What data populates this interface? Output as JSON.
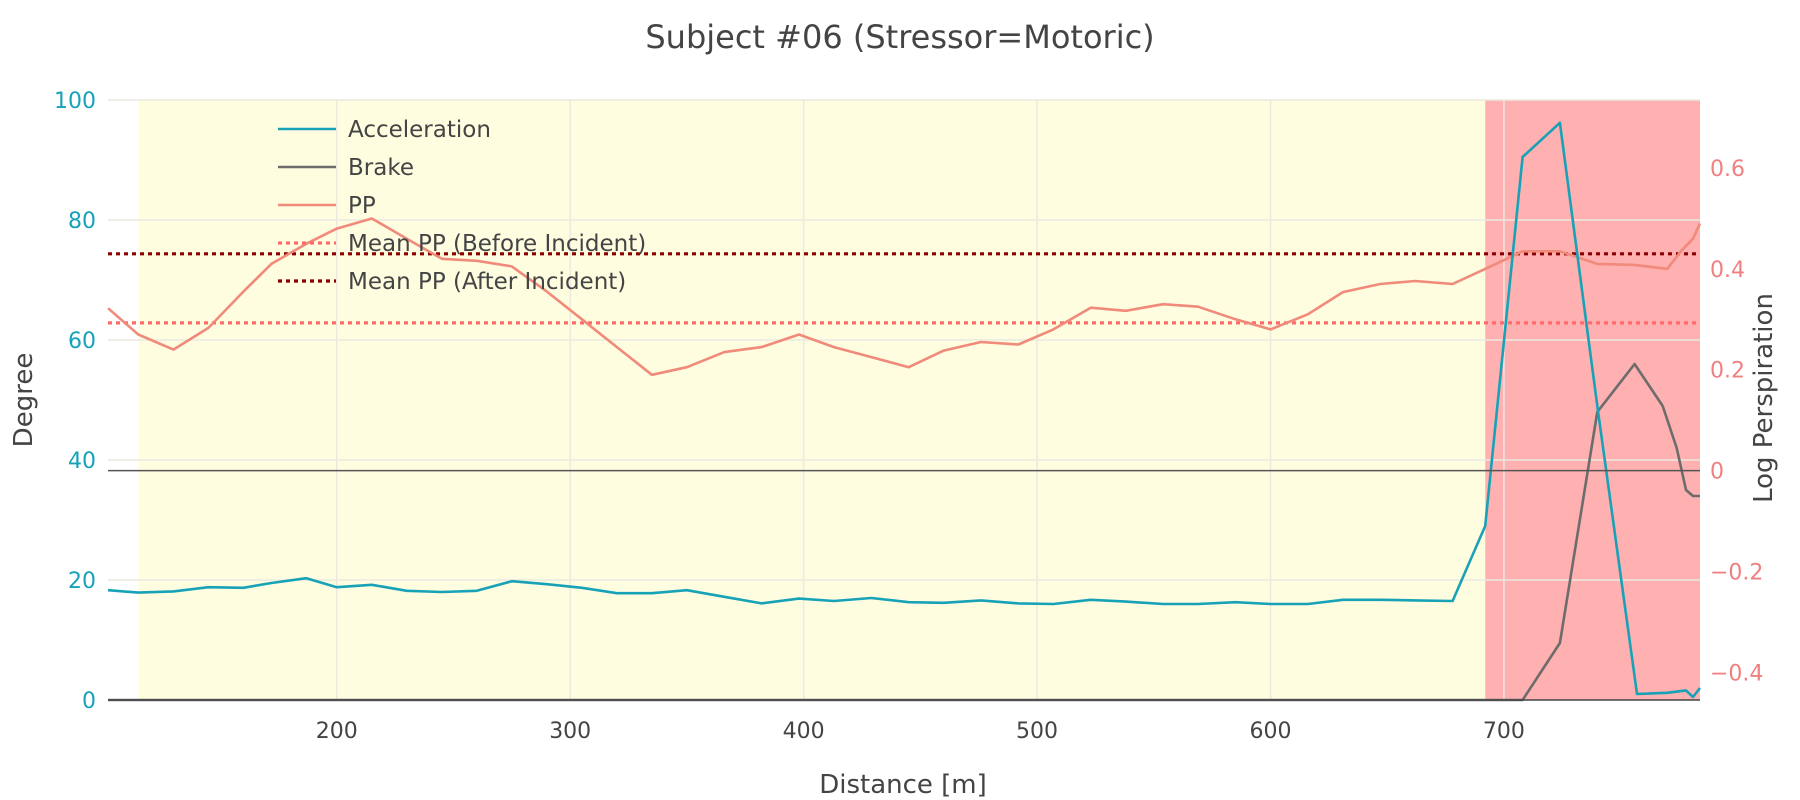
{
  "colors": {
    "acceleration": "#17a2b8",
    "brake": "#6c6c6c",
    "pp": "#f08a7a",
    "mean_before": "#ff6b6b",
    "mean_after": "#8b0000",
    "left_axis": "#17a2b8",
    "right_axis": "#f08080",
    "before_region": "#fffde0",
    "after_region": "#ffb0b0",
    "grid": "#ece9df"
  },
  "chart_data": {
    "type": "line",
    "title": "Subject #06 (Stressor=Motoric)",
    "xlabel": "Distance [m]",
    "ylabel_left": "Degree",
    "ylabel_right": "Log Perspiration",
    "xlim": [
      102,
      784
    ],
    "ylim_left": [
      0,
      100
    ],
    "ylim_right": [
      -0.455,
      0.735
    ],
    "x_ticks": [
      200,
      300,
      400,
      500,
      600,
      700
    ],
    "y_left_ticks": [
      0,
      20,
      40,
      60,
      80,
      100
    ],
    "y_right_ticks": [
      -0.4,
      -0.2,
      0,
      0.2,
      0.4,
      0.6
    ],
    "y_right_tick_labels": [
      "−0.4",
      "−0.2",
      "0",
      "0.2",
      "0.4",
      "0.6"
    ],
    "regions": [
      {
        "name": "Before Incident",
        "x0": 115,
        "x1": 692
      },
      {
        "name": "After Incident",
        "x0": 692,
        "x1": 784
      }
    ],
    "legend_position": "top-left",
    "series": [
      {
        "name": "Acceleration",
        "axis": "left",
        "x": [
          102,
          115,
          130,
          145,
          160,
          172,
          187,
          200,
          215,
          230,
          245,
          260,
          275,
          290,
          305,
          320,
          335,
          350,
          366,
          382,
          398,
          413,
          429,
          445,
          460,
          476,
          492,
          507,
          523,
          538,
          554,
          569,
          585,
          600,
          616,
          631,
          647,
          662,
          678,
          692,
          708,
          724,
          740,
          757,
          770,
          778,
          781,
          784
        ],
        "values": [
          18.3,
          17.9,
          18.1,
          18.8,
          18.7,
          19.5,
          20.3,
          18.8,
          19.2,
          18.2,
          18.0,
          18.2,
          19.8,
          19.3,
          18.7,
          17.8,
          17.8,
          18.3,
          17.2,
          16.1,
          16.9,
          16.5,
          17.0,
          16.3,
          16.2,
          16.6,
          16.1,
          16.0,
          16.7,
          16.4,
          16.0,
          16.0,
          16.3,
          16.0,
          16.0,
          16.7,
          16.7,
          16.6,
          16.5,
          29.0,
          90.5,
          96.2,
          49.0,
          1.0,
          1.2,
          1.6,
          0.5,
          2.0
        ]
      },
      {
        "name": "Brake",
        "axis": "left",
        "x": [
          102,
          692,
          708,
          724,
          740,
          756,
          768,
          774,
          778,
          781,
          784
        ],
        "values": [
          0,
          0,
          0,
          9.5,
          48.0,
          56.0,
          49.0,
          42.0,
          35.0,
          34.0,
          34.0
        ]
      },
      {
        "name": "PP",
        "axis": "right",
        "x": [
          102,
          115,
          130,
          145,
          160,
          172,
          187,
          200,
          215,
          230,
          245,
          260,
          275,
          290,
          305,
          320,
          335,
          350,
          366,
          382,
          398,
          413,
          429,
          445,
          460,
          476,
          492,
          507,
          523,
          538,
          554,
          569,
          585,
          600,
          616,
          631,
          647,
          662,
          678,
          692,
          708,
          724,
          740,
          756,
          770,
          776,
          781,
          784
        ],
        "values": [
          0.322,
          0.27,
          0.24,
          0.283,
          0.355,
          0.41,
          0.45,
          0.48,
          0.5,
          0.46,
          0.42,
          0.416,
          0.405,
          0.355,
          0.3,
          0.245,
          0.19,
          0.205,
          0.235,
          0.245,
          0.27,
          0.245,
          0.225,
          0.205,
          0.238,
          0.255,
          0.25,
          0.28,
          0.323,
          0.317,
          0.33,
          0.325,
          0.3,
          0.28,
          0.31,
          0.354,
          0.37,
          0.376,
          0.37,
          0.4,
          0.435,
          0.435,
          0.41,
          0.408,
          0.4,
          0.436,
          0.46,
          0.49
        ]
      },
      {
        "name": "Mean PP (Before Incident)",
        "axis": "right",
        "style": "dotted",
        "x": [
          102,
          784
        ],
        "values": [
          0.293,
          0.293
        ]
      },
      {
        "name": "Mean PP (After Incident)",
        "axis": "right",
        "style": "dotted",
        "x": [
          102,
          784
        ],
        "values": [
          0.43,
          0.43
        ]
      }
    ]
  }
}
